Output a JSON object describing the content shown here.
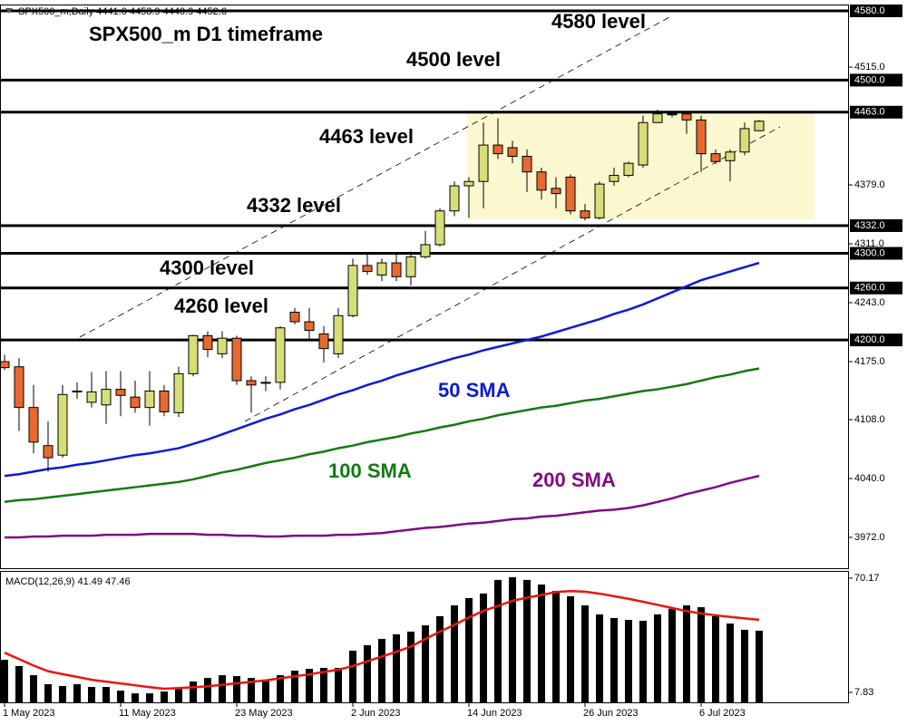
{
  "chart_data": [
    {
      "type": "candlestick",
      "header": "SPX500_m,Daily  4441.6 4453.9 4440.9 4452.6",
      "title": "SPX500_m D1 timeframe",
      "annotations": [
        "4580 level",
        "4500 level",
        "4463 level",
        "4332 level",
        "4300 level",
        "4260 level"
      ],
      "categories": [
        "1 May 2023",
        null,
        null,
        null,
        null,
        null,
        null,
        null,
        "11 May 2023",
        null,
        null,
        null,
        null,
        null,
        null,
        null,
        "23 May 2023",
        null,
        null,
        null,
        null,
        null,
        null,
        null,
        "2 Jun 2023",
        null,
        null,
        null,
        null,
        null,
        null,
        null,
        "14 Jun 2023",
        null,
        null,
        null,
        null,
        null,
        null,
        null,
        "26 Jun 2023",
        null,
        null,
        null,
        null,
        null,
        null,
        null,
        "6 Jul 2023",
        null,
        null,
        null,
        null
      ],
      "open": [
        4175,
        4169,
        4122,
        4078,
        4067,
        4140,
        4128,
        4125,
        4143,
        4134,
        4122,
        4141,
        4116,
        4161,
        4205,
        4184,
        4202,
        4153,
        4150,
        4151,
        4232,
        4221,
        4207,
        4184,
        4228,
        4286,
        4275,
        4289,
        4273,
        4296,
        4310,
        4349,
        4378,
        4383,
        4425,
        4422,
        4412,
        4394,
        4375,
        4388,
        4349,
        4341,
        4383,
        4390,
        4402,
        4451,
        4460,
        4461,
        4454,
        4415,
        4407,
        4417,
        4441.6
      ],
      "high": [
        4183,
        4179,
        4148,
        4106,
        4148,
        4151,
        4163,
        4164,
        4164,
        4153,
        4164,
        4148,
        4169,
        4206,
        4210,
        4210,
        4205,
        4158,
        4158,
        4216,
        4237,
        4237,
        4216,
        4237,
        4294,
        4300,
        4294,
        4300,
        4302,
        4326,
        4352,
        4383,
        4388,
        4451,
        4456,
        4430,
        4420,
        4399,
        4388,
        4391,
        4357,
        4383,
        4399,
        4406,
        4459,
        4466,
        4464,
        4464,
        4459,
        4420,
        4420,
        4451,
        4453.9
      ],
      "low": [
        4165,
        4095,
        4069,
        4048,
        4064,
        4132,
        4122,
        4103,
        4112,
        4116,
        4101,
        4112,
        4111,
        4158,
        4180,
        4179,
        4148,
        4116,
        4141,
        4143,
        4218,
        4200,
        4174,
        4179,
        4226,
        4275,
        4268,
        4268,
        4263,
        4294,
        4308,
        4343,
        4341,
        4352,
        4409,
        4404,
        4371,
        4362,
        4352,
        4345,
        4338,
        4339,
        4378,
        4388,
        4399,
        4451,
        4457,
        4438,
        4394,
        4403,
        4383,
        4413,
        4440.9
      ],
      "close": [
        4168,
        4122,
        4082,
        4064,
        4137,
        4141,
        4140,
        4143,
        4136,
        4122,
        4141,
        4117,
        4161,
        4205,
        4189,
        4202,
        4153,
        4148,
        4151,
        4214,
        4221,
        4211,
        4190,
        4228,
        4286,
        4279,
        4289,
        4273,
        4296,
        4310,
        4349,
        4378,
        4383,
        4425,
        4415,
        4412,
        4394,
        4373,
        4369,
        4349,
        4341,
        4380,
        4390,
        4404,
        4451,
        4461,
        4461,
        4454,
        4415,
        4406,
        4417,
        4444,
        4452.6
      ],
      "up_color": "#d6de78",
      "down_color": "#e8692f",
      "series": [
        {
          "name": "50 SMA",
          "color": "#0a1ad6",
          "values": [
            4043,
            4045,
            4048,
            4051,
            4053,
            4056,
            4058,
            4061,
            4064,
            4067,
            4069,
            4072,
            4075,
            4080,
            4085,
            4091,
            4097,
            4103,
            4109,
            4114,
            4120,
            4125,
            4131,
            4137,
            4142,
            4148,
            4153,
            4159,
            4164,
            4169,
            4174,
            4179,
            4183,
            4188,
            4192,
            4196,
            4200,
            4204,
            4209,
            4214,
            4219,
            4224,
            4230,
            4235,
            4241,
            4248,
            4255,
            4262,
            4269,
            4274,
            4279,
            4284,
            4289
          ]
        },
        {
          "name": "100 SMA",
          "color": "#137a13",
          "values": [
            4013,
            4015,
            4016,
            4018,
            4020,
            4022,
            4024,
            4026,
            4028,
            4030,
            4032,
            4034,
            4036,
            4039,
            4043,
            4047,
            4050,
            4054,
            4058,
            4061,
            4064,
            4068,
            4071,
            4075,
            4078,
            4082,
            4085,
            4088,
            4092,
            4095,
            4099,
            4102,
            4106,
            4109,
            4113,
            4116,
            4119,
            4122,
            4124,
            4127,
            4130,
            4132,
            4135,
            4138,
            4141,
            4143,
            4146,
            4149,
            4153,
            4157,
            4160,
            4164,
            4167
          ]
        },
        {
          "name": "200 SMA",
          "color": "#7d0c82",
          "values": [
            3972,
            3972,
            3973,
            3973,
            3974,
            3974,
            3974,
            3975,
            3975,
            3975,
            3976,
            3976,
            3976,
            3976,
            3975,
            3975,
            3974,
            3974,
            3973,
            3973,
            3974,
            3974,
            3974,
            3975,
            3975,
            3976,
            3977,
            3979,
            3981,
            3983,
            3984,
            3986,
            3988,
            3989,
            3991,
            3993,
            3994,
            3996,
            3997,
            3999,
            4001,
            4003,
            4004,
            4006,
            4009,
            4013,
            4017,
            4022,
            4026,
            4030,
            4035,
            4039,
            4043
          ]
        }
      ],
      "ylim": [
        3936.4,
        4587.3
      ],
      "yticks": [
        {
          "value": 4515,
          "label": "4515.0"
        },
        {
          "value": 4379,
          "label": "4379.0"
        },
        {
          "value": 4311,
          "label": "4311.0"
        },
        {
          "value": 4243,
          "label": "4243.0"
        },
        {
          "value": 4175,
          "label": "4175.0"
        },
        {
          "value": 4108,
          "label": "4108.0"
        },
        {
          "value": 4040,
          "label": "4040.0"
        },
        {
          "value": 3972,
          "label": "3972.0"
        }
      ],
      "levels": [
        {
          "value": 4580,
          "label": "4580.0"
        },
        {
          "value": 4500,
          "label": "4500.0"
        },
        {
          "value": 4463,
          "label": "4463.0"
        },
        {
          "value": 4332,
          "label": "4332.0"
        },
        {
          "value": 4300,
          "label": "4300.0"
        },
        {
          "value": 4260,
          "label": "4260.0"
        },
        {
          "value": 4200,
          "label": "4200.0"
        }
      ]
    },
    {
      "type": "bar",
      "title": "MACD(12,26,9) 41.49 47.46",
      "color": "#000000",
      "values": [
        25.6,
        22.2,
        17.2,
        12.3,
        11.3,
        12.3,
        10.8,
        10.8,
        8.8,
        7.3,
        7.3,
        8.3,
        9.8,
        13.8,
        15.7,
        17.2,
        16.7,
        15.7,
        14.8,
        17.2,
        19.7,
        20.7,
        21.2,
        21.2,
        30.6,
        33.6,
        37.0,
        39.5,
        41.0,
        44.4,
        49.4,
        55.3,
        59.3,
        61.8,
        69.2,
        70.7,
        69.2,
        66.7,
        63.2,
        60.3,
        55.3,
        50.4,
        48.4,
        47.4,
        46.9,
        50.4,
        53.4,
        55.3,
        54.3,
        49.4,
        45.4,
        42.0,
        41.49
      ],
      "series": [
        {
          "color": "#e8160f",
          "values": [
            29.5,
            26,
            22.5,
            19.4,
            17.8,
            16.3,
            14.7,
            13.7,
            12.7,
            11.7,
            10.7,
            9.8,
            10.2,
            10.6,
            11.2,
            12.0,
            12.8,
            13.6,
            14.4,
            15.5,
            16.6,
            17.7,
            19.0,
            20.2,
            22.2,
            24.8,
            27.4,
            30.0,
            32.8,
            37.0,
            41.0,
            44.7,
            48.7,
            52.3,
            55.0,
            57.8,
            59.5,
            61.0,
            62.6,
            63.1,
            62.8,
            61.7,
            60.3,
            58.9,
            57.3,
            55.6,
            53.9,
            52.2,
            50.9,
            49.9,
            49.0,
            48.2,
            47.46
          ]
        }
      ],
      "ylim": [
        2.4,
        74.1
      ],
      "yticks": [
        70.17,
        7.83
      ]
    }
  ]
}
